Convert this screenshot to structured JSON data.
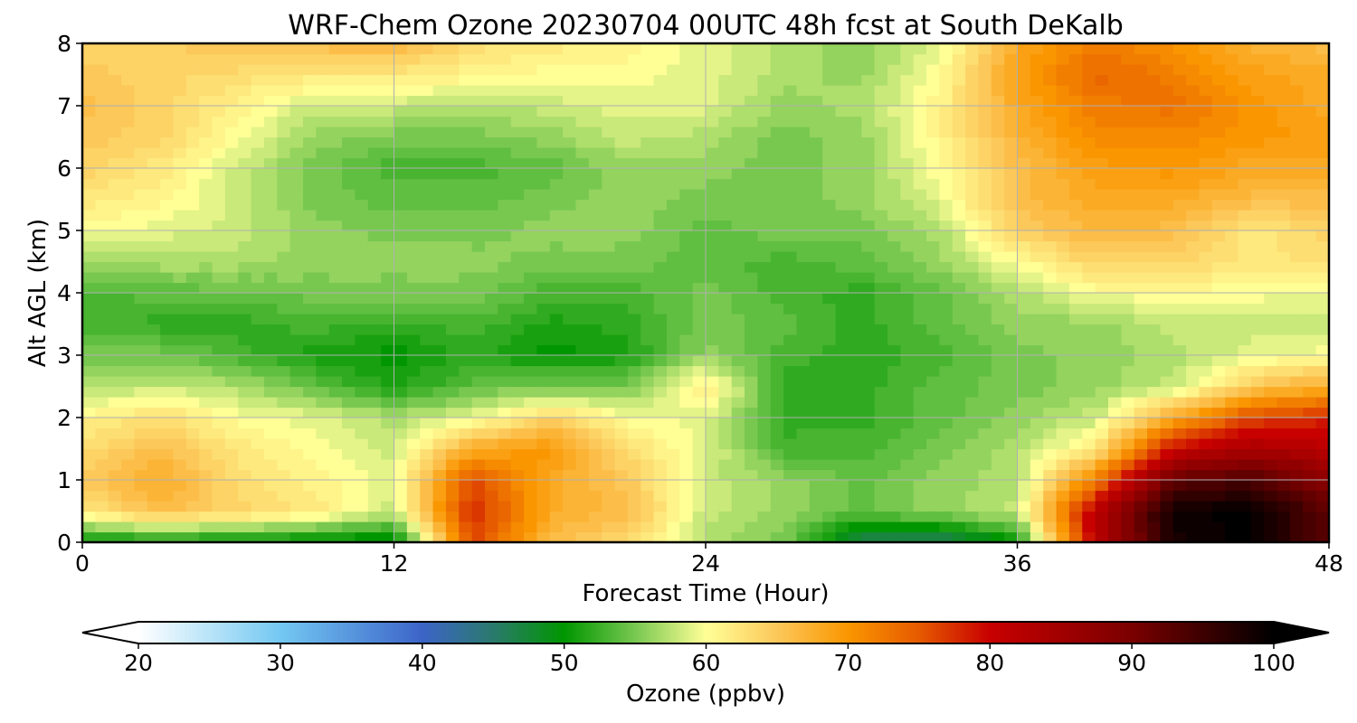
{
  "chart_data": {
    "type": "heatmap",
    "title": "WRF-Chem Ozone  20230704 00UTC 48h fcst at South DeKalb",
    "xlabel": "Forecast Time (Hour)",
    "ylabel": "Alt AGL (km)",
    "xlim": [
      0,
      48
    ],
    "ylim": [
      0,
      8
    ],
    "x_ticks": [
      0,
      12,
      24,
      36,
      48
    ],
    "y_ticks": [
      0,
      1,
      2,
      3,
      4,
      5,
      6,
      7,
      8
    ],
    "grid": true,
    "x_hours": [
      0,
      3,
      6,
      9,
      12,
      15,
      18,
      21,
      24,
      27,
      30,
      33,
      36,
      39,
      42,
      45,
      48
    ],
    "y_km": [
      0,
      0.5,
      1,
      1.5,
      2,
      2.5,
      3,
      3.5,
      4,
      4.5,
      5,
      5.5,
      6,
      6.5,
      7,
      7.5,
      8
    ],
    "ozone_ppbv": [
      [
        50,
        50,
        50,
        49,
        48,
        76,
        66,
        63,
        57,
        55,
        46,
        45,
        50,
        82,
        98,
        100,
        92
      ],
      [
        62,
        66,
        64,
        62,
        58,
        78,
        68,
        66,
        58,
        56,
        54,
        56,
        58,
        82,
        99,
        100,
        92
      ],
      [
        65,
        68,
        63,
        61,
        59,
        76,
        68,
        65,
        58,
        56,
        54,
        56,
        57,
        72,
        92,
        94,
        88
      ],
      [
        63,
        66,
        62,
        60,
        58,
        68,
        70,
        63,
        59,
        53,
        53,
        55,
        57,
        62,
        80,
        84,
        82
      ],
      [
        61,
        63,
        60,
        59,
        57,
        59,
        64,
        60,
        59,
        52,
        52,
        54,
        56,
        58,
        68,
        76,
        78
      ],
      [
        57,
        58,
        57,
        54,
        51,
        54,
        55,
        55,
        62,
        52,
        52,
        54,
        55,
        56,
        58,
        65,
        68
      ],
      [
        55,
        55,
        53,
        51,
        50,
        52,
        50,
        51,
        56,
        53,
        52,
        53,
        55,
        56,
        57,
        59,
        60
      ],
      [
        53,
        52,
        52,
        53,
        52,
        53,
        51,
        52,
        55,
        54,
        52,
        54,
        56,
        56,
        58,
        58,
        58
      ],
      [
        53,
        54,
        54,
        55,
        55,
        55,
        53,
        53,
        55,
        53,
        52,
        54,
        57,
        60,
        60,
        60,
        59
      ],
      [
        57,
        57,
        57,
        56,
        56,
        56,
        55,
        55,
        54,
        53,
        54,
        56,
        60,
        64,
        64,
        62,
        63
      ],
      [
        60,
        59,
        58,
        56,
        55,
        55,
        56,
        56,
        54,
        55,
        55,
        57,
        64,
        67,
        66,
        62,
        64
      ],
      [
        62,
        61,
        58,
        55,
        54,
        54,
        55,
        56,
        55,
        55,
        56,
        59,
        66,
        68,
        68,
        66,
        66
      ],
      [
        64,
        62,
        58,
        55,
        53,
        53,
        54,
        56,
        56,
        55,
        56,
        60,
        66,
        69,
        70,
        68,
        68
      ],
      [
        65,
        64,
        60,
        56,
        55,
        55,
        56,
        58,
        57,
        55,
        56,
        61,
        67,
        71,
        71,
        70,
        69
      ],
      [
        66,
        64,
        61,
        58,
        58,
        57,
        58,
        59,
        59,
        56,
        57,
        61,
        68,
        72,
        73,
        70,
        68
      ],
      [
        65,
        64,
        63,
        62,
        62,
        61,
        60,
        60,
        59,
        57,
        56,
        60,
        69,
        74,
        72,
        69,
        68
      ],
      [
        64,
        64,
        66,
        66,
        67,
        63,
        62,
        61,
        59,
        57,
        56,
        59,
        68,
        72,
        70,
        67,
        66
      ]
    ],
    "colorbar": {
      "label": "Ozone  (ppbv)",
      "min": 20,
      "max": 100,
      "extend": "both",
      "ticks": [
        20,
        30,
        40,
        50,
        60,
        70,
        80,
        90,
        100
      ],
      "stops": [
        {
          "v": 20,
          "c": "#ffffff"
        },
        {
          "v": 30,
          "c": "#73c8f2"
        },
        {
          "v": 40,
          "c": "#3c64c8"
        },
        {
          "v": 45,
          "c": "#2a7a6c"
        },
        {
          "v": 50,
          "c": "#009600"
        },
        {
          "v": 55,
          "c": "#78c850"
        },
        {
          "v": 60,
          "c": "#ffff96"
        },
        {
          "v": 65,
          "c": "#fcc85a"
        },
        {
          "v": 70,
          "c": "#fa9600"
        },
        {
          "v": 75,
          "c": "#e65a00"
        },
        {
          "v": 80,
          "c": "#c80000"
        },
        {
          "v": 90,
          "c": "#7a0000"
        },
        {
          "v": 100,
          "c": "#000000"
        }
      ]
    }
  }
}
